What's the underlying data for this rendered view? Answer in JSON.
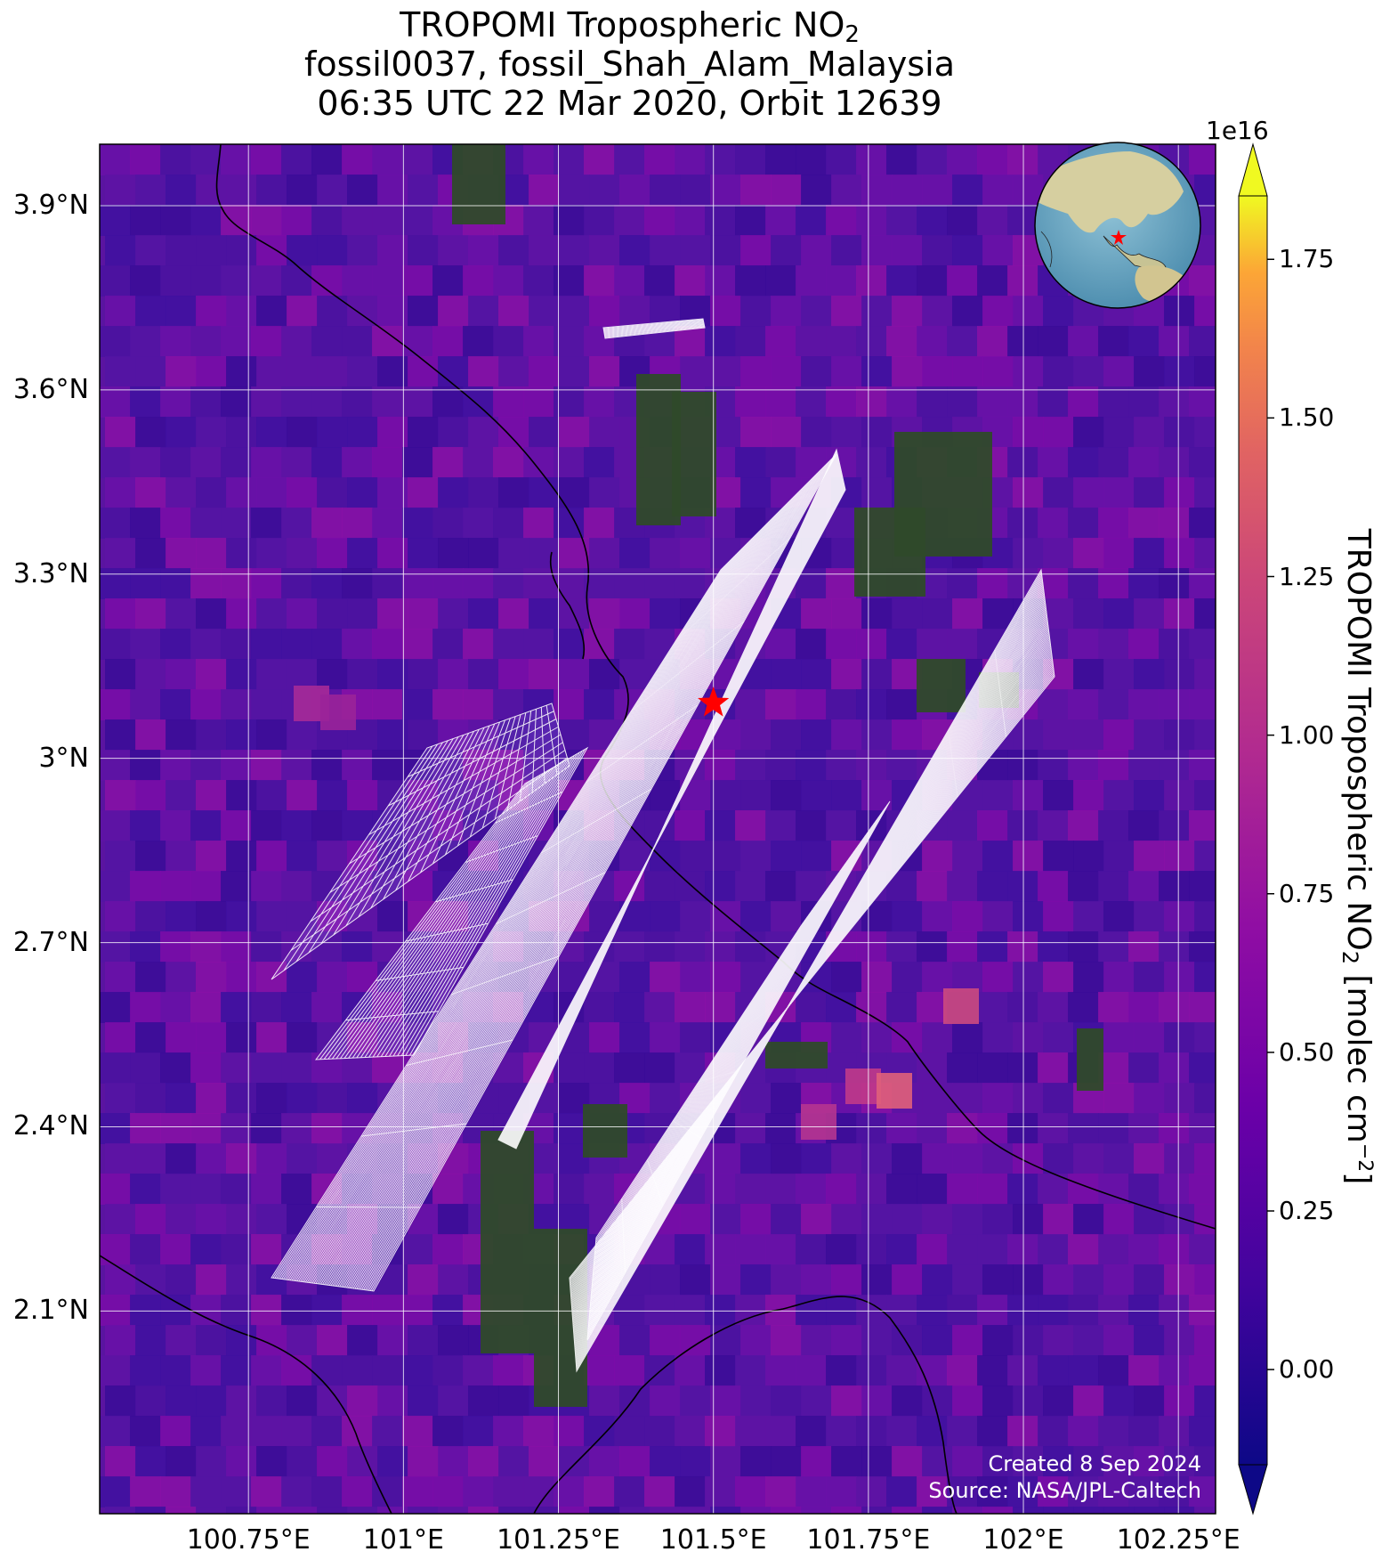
{
  "title": {
    "line1_prefix": "TROPOMI Tropospheric NO",
    "line1_sub": "2",
    "line2": "fossil0037, fossil_Shah_Alam_Malaysia",
    "line3": "06:35 UTC 22 Mar 2020, Orbit 12639"
  },
  "map": {
    "lon_range": [
      100.51,
      102.31
    ],
    "lat_range": [
      1.77,
      4.0
    ],
    "lat_ticks": [
      "3.9°N",
      "3.6°N",
      "3.3°N",
      "3°N",
      "2.7°N",
      "2.4°N",
      "2.1°N"
    ],
    "lat_tick_values": [
      3.9,
      3.6,
      3.3,
      3.0,
      2.7,
      2.4,
      2.1
    ],
    "lon_ticks": [
      "100.75°E",
      "101°E",
      "101.25°E",
      "101.5°E",
      "101.75°E",
      "102°E",
      "102.25°E"
    ],
    "lon_tick_values": [
      100.75,
      101.0,
      101.25,
      101.5,
      101.75,
      102.0,
      102.25
    ],
    "target_marker": {
      "name": "fossil_Shah_Alam_Malaysia",
      "lon": 101.5,
      "lat": 3.09,
      "color": "#ff0000"
    },
    "background_color": "#5a14a0",
    "grid_color": "#ffffff"
  },
  "colorbar": {
    "exponent_label": "1e16",
    "ticks": [
      "1.75",
      "1.50",
      "1.25",
      "1.00",
      "0.75",
      "0.50",
      "0.25",
      "0.00"
    ],
    "tick_values": [
      1.75,
      1.5,
      1.25,
      1.0,
      0.75,
      0.5,
      0.25,
      0.0
    ],
    "range": [
      -0.15,
      1.85
    ],
    "label_prefix": "TROPOMI Tropospheric NO",
    "label_sub": "2",
    "label_mid": " [molec cm",
    "label_sup": "−2",
    "label_suffix": "]",
    "colormap": "plasma"
  },
  "credits": {
    "line1": "Created 8 Sep 2024",
    "line2": "Source: NASA/JPL-Caltech"
  }
}
